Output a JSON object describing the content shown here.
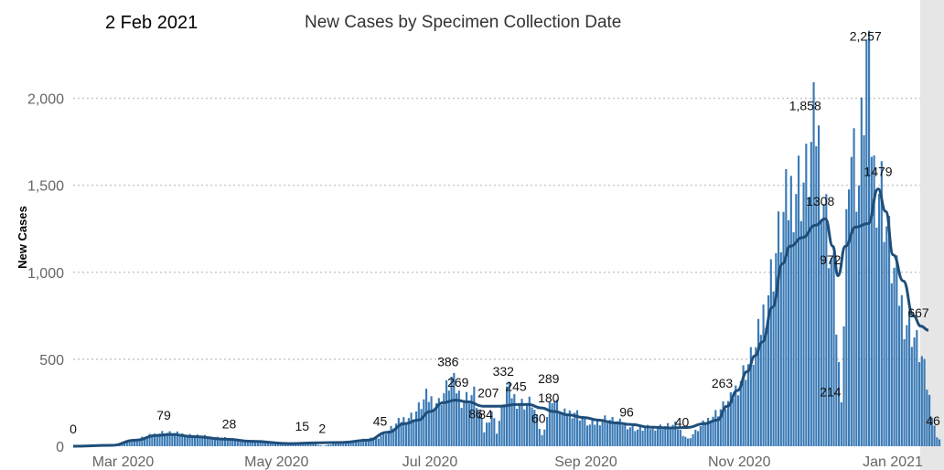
{
  "header": {
    "date": "2 Feb 2021"
  },
  "chart_data": {
    "type": "bar",
    "title": "New Cases by Specimen Collection Date",
    "ylabel": "New Cases",
    "xlabel": "",
    "ylim": [
      0,
      2250
    ],
    "yticks": [
      {
        "value": 0,
        "label": "0"
      },
      {
        "value": 500,
        "label": "500"
      },
      {
        "value": 1000,
        "label": "1,000"
      },
      {
        "value": 1500,
        "label": "1,500"
      },
      {
        "value": 2000,
        "label": "2,000"
      }
    ],
    "xticks": [
      {
        "date": "2020-03-01",
        "label": "Mar 2020"
      },
      {
        "date": "2020-05-01",
        "label": "May 2020"
      },
      {
        "date": "2020-07-01",
        "label": "Jul 2020"
      },
      {
        "date": "2020-09-01",
        "label": "Sep 2020"
      },
      {
        "date": "2020-11-01",
        "label": "Nov 2020"
      },
      {
        "date": "2021-01-01",
        "label": "Jan 2021"
      }
    ],
    "x_range": [
      "2020-02-24",
      "2021-02-02"
    ],
    "bar_anchors": [
      [
        "2020-02-24",
        0
      ],
      [
        "2020-03-05",
        0
      ],
      [
        "2020-03-10",
        5
      ],
      [
        "2020-03-15",
        20
      ],
      [
        "2020-03-20",
        40
      ],
      [
        "2020-03-25",
        60
      ],
      [
        "2020-03-30",
        79
      ],
      [
        "2020-04-05",
        72
      ],
      [
        "2020-04-12",
        60
      ],
      [
        "2020-04-20",
        50
      ],
      [
        "2020-04-25",
        45
      ],
      [
        "2020-05-01",
        28
      ],
      [
        "2020-05-10",
        22
      ],
      [
        "2020-05-20",
        15
      ],
      [
        "2020-05-27",
        18
      ],
      [
        "2020-06-02",
        2
      ],
      [
        "2020-06-08",
        20
      ],
      [
        "2020-06-16",
        35
      ],
      [
        "2020-06-23",
        45
      ],
      [
        "2020-06-28",
        90
      ],
      [
        "2020-07-03",
        150
      ],
      [
        "2020-07-08",
        180
      ],
      [
        "2020-07-13",
        280
      ],
      [
        "2020-07-18",
        250
      ],
      [
        "2020-07-23",
        386
      ],
      [
        "2020-07-27",
        269
      ],
      [
        "2020-08-01",
        300
      ],
      [
        "2020-08-05",
        86
      ],
      [
        "2020-08-08",
        207
      ],
      [
        "2020-08-10",
        84
      ],
      [
        "2020-08-14",
        332
      ],
      [
        "2020-08-19",
        245
      ],
      [
        "2020-08-24",
        250
      ],
      [
        "2020-08-28",
        60
      ],
      [
        "2020-09-01",
        289
      ],
      [
        "2020-09-05",
        180
      ],
      [
        "2020-09-10",
        200
      ],
      [
        "2020-09-16",
        120
      ],
      [
        "2020-09-22",
        160
      ],
      [
        "2020-09-29",
        130
      ],
      [
        "2020-10-05",
        96
      ],
      [
        "2020-10-12",
        110
      ],
      [
        "2020-10-20",
        120
      ],
      [
        "2020-10-25",
        40
      ],
      [
        "2020-11-01",
        140
      ],
      [
        "2020-11-06",
        200
      ],
      [
        "2020-11-11",
        263
      ],
      [
        "2020-11-16",
        420
      ],
      [
        "2020-11-21",
        550
      ],
      [
        "2020-11-26",
        900
      ],
      [
        "2020-12-01",
        1250
      ],
      [
        "2020-12-06",
        1500
      ],
      [
        "2020-12-11",
        1520
      ],
      [
        "2020-12-15",
        1858
      ],
      [
        "2020-12-19",
        1308
      ],
      [
        "2020-12-22",
        972
      ],
      [
        "2020-12-25",
        214
      ],
      [
        "2020-12-28",
        1800
      ],
      [
        "2021-01-01",
        1500
      ],
      [
        "2021-01-04",
        2257
      ],
      [
        "2021-01-07",
        1560
      ],
      [
        "2021-01-10",
        1479
      ],
      [
        "2021-01-14",
        1050
      ],
      [
        "2021-01-19",
        750
      ],
      [
        "2021-01-22",
        667
      ],
      [
        "2021-01-26",
        500
      ],
      [
        "2021-01-30",
        200
      ],
      [
        "2021-02-01",
        46
      ]
    ],
    "moving_average": [
      [
        "2020-02-24",
        0
      ],
      [
        "2020-03-10",
        5
      ],
      [
        "2020-03-20",
        35
      ],
      [
        "2020-03-28",
        62
      ],
      [
        "2020-04-03",
        68
      ],
      [
        "2020-04-12",
        55
      ],
      [
        "2020-04-25",
        40
      ],
      [
        "2020-05-05",
        28
      ],
      [
        "2020-05-20",
        15
      ],
      [
        "2020-06-01",
        20
      ],
      [
        "2020-06-10",
        22
      ],
      [
        "2020-06-20",
        35
      ],
      [
        "2020-06-28",
        80
      ],
      [
        "2020-07-05",
        130
      ],
      [
        "2020-07-10",
        150
      ],
      [
        "2020-07-15",
        200
      ],
      [
        "2020-07-20",
        250
      ],
      [
        "2020-07-25",
        265
      ],
      [
        "2020-07-30",
        255
      ],
      [
        "2020-08-05",
        230
      ],
      [
        "2020-08-12",
        230
      ],
      [
        "2020-08-18",
        240
      ],
      [
        "2020-08-23",
        240
      ],
      [
        "2020-08-28",
        220
      ],
      [
        "2020-09-02",
        200
      ],
      [
        "2020-09-08",
        180
      ],
      [
        "2020-09-14",
        165
      ],
      [
        "2020-09-20",
        150
      ],
      [
        "2020-09-26",
        135
      ],
      [
        "2020-10-03",
        125
      ],
      [
        "2020-10-10",
        110
      ],
      [
        "2020-10-18",
        105
      ],
      [
        "2020-10-25",
        108
      ],
      [
        "2020-11-01",
        130
      ],
      [
        "2020-11-06",
        150
      ],
      [
        "2020-11-10",
        230
      ],
      [
        "2020-11-14",
        320
      ],
      [
        "2020-11-18",
        430
      ],
      [
        "2020-11-21",
        520
      ],
      [
        "2020-11-24",
        600
      ],
      [
        "2020-11-28",
        800
      ],
      [
        "2020-12-02",
        1050
      ],
      [
        "2020-12-05",
        1150
      ],
      [
        "2020-12-10",
        1200
      ],
      [
        "2020-12-15",
        1270
      ],
      [
        "2020-12-19",
        1308
      ],
      [
        "2020-12-22",
        1150
      ],
      [
        "2020-12-24",
        980
      ],
      [
        "2020-12-27",
        1150
      ],
      [
        "2020-12-31",
        1260
      ],
      [
        "2021-01-05",
        1280
      ],
      [
        "2021-01-09",
        1479
      ],
      [
        "2021-01-12",
        1350
      ],
      [
        "2021-01-15",
        1100
      ],
      [
        "2021-01-19",
        950
      ],
      [
        "2021-01-23",
        750
      ],
      [
        "2021-01-26",
        690
      ],
      [
        "2021-01-29",
        667
      ]
    ],
    "data_labels": [
      {
        "date": "2020-02-24",
        "value": 0,
        "text": "0",
        "dy": -14
      },
      {
        "date": "2020-03-31",
        "value": 79,
        "text": "79",
        "dy": -14
      },
      {
        "date": "2020-04-26",
        "value": 28,
        "text": "28",
        "dy": -14
      },
      {
        "date": "2020-05-25",
        "value": 15,
        "text": "15",
        "dy": -14
      },
      {
        "date": "2020-06-02",
        "value": 2,
        "text": "2",
        "dy": -14
      },
      {
        "date": "2020-06-25",
        "value": 45,
        "text": "45",
        "dy": -14
      },
      {
        "date": "2020-07-22",
        "value": 386,
        "text": "386",
        "dy": -14
      },
      {
        "date": "2020-07-26",
        "value": 269,
        "text": "269",
        "dy": -14
      },
      {
        "date": "2020-08-02",
        "value": 86,
        "text": "86",
        "dy": -14
      },
      {
        "date": "2020-08-07",
        "value": 207,
        "text": "207",
        "dy": -14
      },
      {
        "date": "2020-08-06",
        "value": 84,
        "text": "84",
        "dy": -14
      },
      {
        "date": "2020-08-13",
        "value": 332,
        "text": "332",
        "dy": -14
      },
      {
        "date": "2020-08-18",
        "value": 245,
        "text": "245",
        "dy": -14
      },
      {
        "date": "2020-08-27",
        "value": 60,
        "text": "60",
        "dy": -14
      },
      {
        "date": "2020-08-31",
        "value": 289,
        "text": "289",
        "dy": -14
      },
      {
        "date": "2020-08-31",
        "value": 180,
        "text": "180",
        "dy": -14
      },
      {
        "date": "2020-10-01",
        "value": 96,
        "text": "96",
        "dy": -14
      },
      {
        "date": "2020-10-23",
        "value": 40,
        "text": "40",
        "dy": -14
      },
      {
        "date": "2020-11-08",
        "value": 263,
        "text": "263",
        "dy": -14
      },
      {
        "date": "2020-12-11",
        "value": 1858,
        "text": "1,858",
        "dy": -14
      },
      {
        "date": "2020-12-17",
        "value": 1308,
        "text": "1308",
        "dy": -14
      },
      {
        "date": "2020-12-21",
        "value": 972,
        "text": "972",
        "dy": -14
      },
      {
        "date": "2020-12-21",
        "value": 214,
        "text": "214",
        "dy": -14
      },
      {
        "date": "2021-01-04",
        "value": 2257,
        "text": "2,257",
        "dy": -14
      },
      {
        "date": "2021-01-09",
        "value": 1479,
        "text": "1479",
        "dy": -14
      },
      {
        "date": "2021-01-25",
        "value": 667,
        "text": "667",
        "dy": -14
      },
      {
        "date": "2021-02-01",
        "value": 46,
        "text": "46",
        "dy": -14
      }
    ],
    "colors": {
      "bar": "#3a7ab5",
      "line": "#1f4e79",
      "gridline": "#c8c8c8",
      "tick_text": "#666666",
      "shade": "#e6e6e6"
    }
  }
}
